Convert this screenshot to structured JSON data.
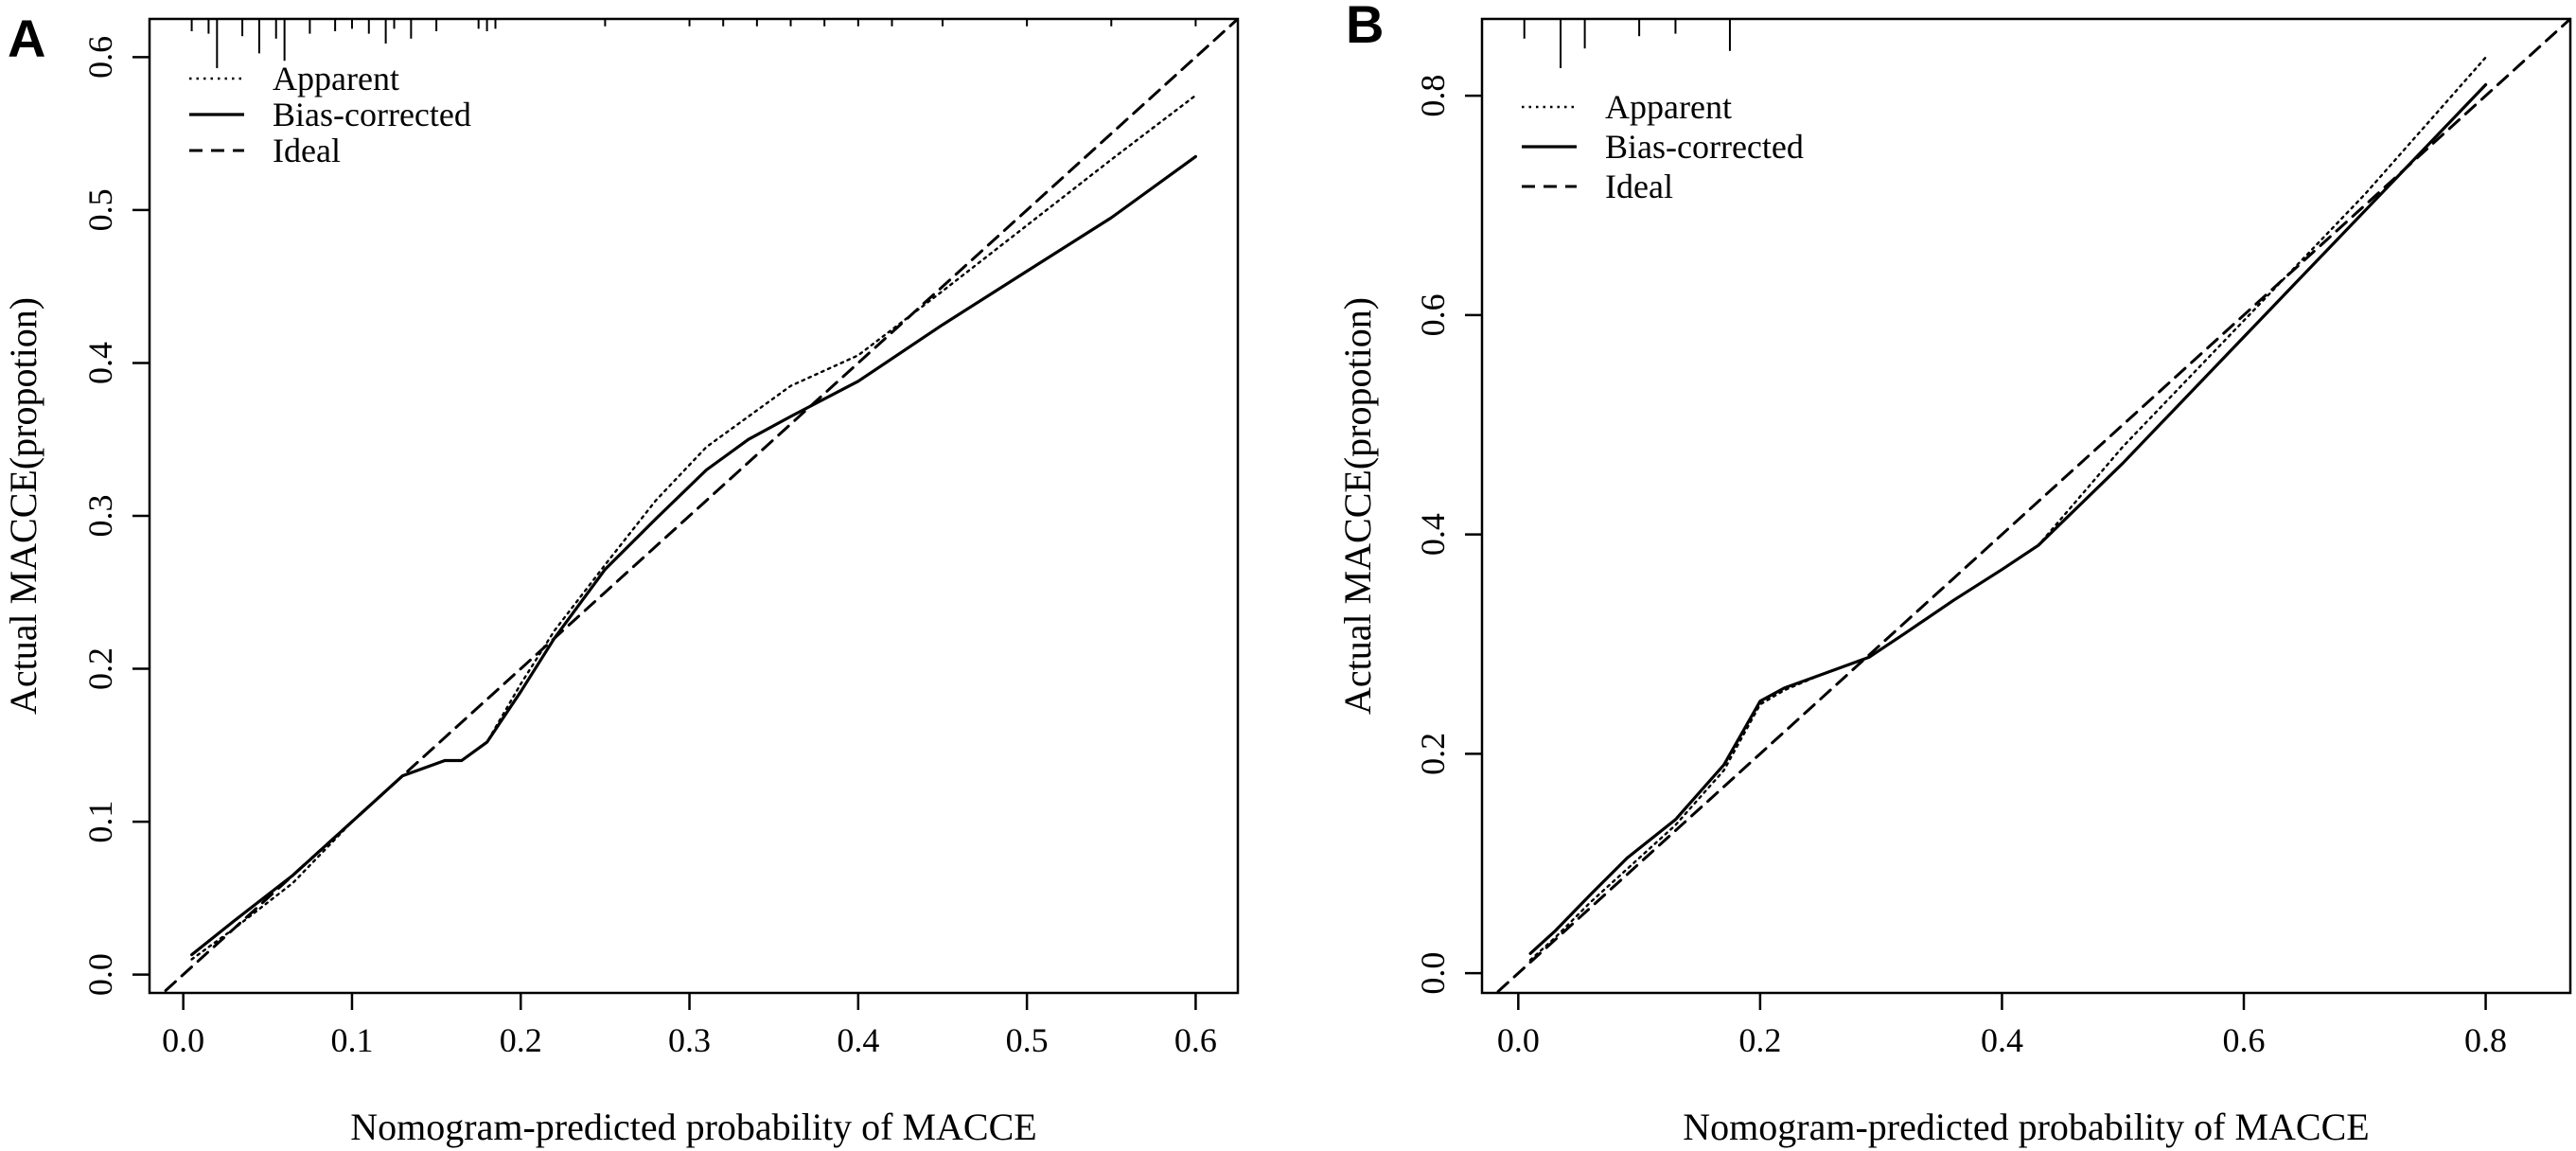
{
  "chart_data": [
    {
      "panel": "A",
      "type": "line",
      "xlabel": "Nomogram-predicted probability of MACCE",
      "ylabel": "Actual MACCE(propotion)",
      "xlim": [
        -0.02,
        0.625
      ],
      "ylim": [
        -0.012,
        0.625
      ],
      "xticks": [
        0.0,
        0.1,
        0.2,
        0.3,
        0.4,
        0.5,
        0.6
      ],
      "yticks": [
        0.0,
        0.1,
        0.2,
        0.3,
        0.4,
        0.5,
        0.6
      ],
      "xtick_labels": [
        "0.0",
        "0.1",
        "0.2",
        "0.3",
        "0.4",
        "0.5",
        "0.6"
      ],
      "ytick_labels": [
        "0.0",
        "0.1",
        "0.2",
        "0.3",
        "0.4",
        "0.5",
        "0.6"
      ],
      "grid": false,
      "legend_position": "top-left",
      "series": [
        {
          "name": "Apparent",
          "style": "dotted",
          "x": [
            0.005,
            0.03,
            0.065,
            0.1,
            0.13,
            0.155,
            0.165,
            0.18,
            0.2,
            0.22,
            0.25,
            0.28,
            0.31,
            0.335,
            0.36,
            0.4,
            0.45,
            0.5,
            0.55,
            0.6
          ],
          "y": [
            0.01,
            0.03,
            0.06,
            0.1,
            0.13,
            0.14,
            0.14,
            0.152,
            0.19,
            0.225,
            0.268,
            0.31,
            0.345,
            0.365,
            0.385,
            0.405,
            0.447,
            0.49,
            0.533,
            0.575
          ]
        },
        {
          "name": "Bias-corrected",
          "style": "solid",
          "x": [
            0.005,
            0.03,
            0.065,
            0.1,
            0.13,
            0.155,
            0.165,
            0.18,
            0.2,
            0.22,
            0.25,
            0.28,
            0.31,
            0.335,
            0.36,
            0.4,
            0.45,
            0.5,
            0.55,
            0.6
          ],
          "y": [
            0.013,
            0.035,
            0.065,
            0.1,
            0.13,
            0.14,
            0.14,
            0.152,
            0.185,
            0.22,
            0.265,
            0.298,
            0.33,
            0.35,
            0.365,
            0.388,
            0.425,
            0.46,
            0.495,
            0.535
          ]
        },
        {
          "name": "Ideal",
          "style": "dashed",
          "x": [
            -0.02,
            0.625
          ],
          "y": [
            -0.02,
            0.625
          ]
        }
      ],
      "rug_x": [
        0.02,
        0.005,
        0.015,
        0.035,
        0.045,
        0.055,
        0.06,
        0.075,
        0.09,
        0.1,
        0.11,
        0.12,
        0.125,
        0.135,
        0.15,
        0.175,
        0.18,
        0.185,
        0.25,
        0.3,
        0.32,
        0.34,
        0.36,
        0.38,
        0.4,
        0.42,
        0.45,
        0.5,
        0.55,
        0.6
      ],
      "rug_len": [
        1.0,
        0.25,
        0.3,
        0.35,
        0.7,
        0.4,
        0.85,
        0.3,
        0.25,
        0.2,
        0.3,
        0.5,
        0.2,
        0.4,
        0.25,
        0.2,
        0.25,
        0.2,
        0.15,
        0.15,
        0.15,
        0.15,
        0.15,
        0.15,
        0.15,
        0.15,
        0.15,
        0.15,
        0.15,
        0.15
      ]
    },
    {
      "panel": "B",
      "type": "line",
      "xlabel": "Nomogram-predicted probability of MACCE",
      "ylabel": "Actual MACCE(propotion)",
      "xlim": [
        -0.03,
        0.87
      ],
      "ylim": [
        -0.018,
        0.87
      ],
      "xticks": [
        0.0,
        0.2,
        0.4,
        0.6,
        0.8
      ],
      "yticks": [
        0.0,
        0.2,
        0.4,
        0.6,
        0.8
      ],
      "xtick_labels": [
        "0.0",
        "0.2",
        "0.4",
        "0.6",
        "0.8"
      ],
      "ytick_labels": [
        "0.0",
        "0.2",
        "0.4",
        "0.6",
        "0.8"
      ],
      "grid": false,
      "legend_position": "top-left",
      "series": [
        {
          "name": "Apparent",
          "style": "dotted",
          "x": [
            0.01,
            0.03,
            0.06,
            0.09,
            0.13,
            0.17,
            0.2,
            0.22,
            0.25,
            0.29,
            0.32,
            0.36,
            0.4,
            0.43,
            0.5,
            0.6,
            0.7,
            0.8
          ],
          "y": [
            0.012,
            0.032,
            0.065,
            0.095,
            0.135,
            0.185,
            0.245,
            0.258,
            0.272,
            0.288,
            0.31,
            0.34,
            0.368,
            0.39,
            0.48,
            0.595,
            0.71,
            0.835
          ]
        },
        {
          "name": "Bias-corrected",
          "style": "solid",
          "x": [
            0.01,
            0.03,
            0.06,
            0.09,
            0.13,
            0.17,
            0.2,
            0.22,
            0.25,
            0.29,
            0.32,
            0.36,
            0.4,
            0.43,
            0.5,
            0.6,
            0.7,
            0.8
          ],
          "y": [
            0.018,
            0.038,
            0.072,
            0.105,
            0.14,
            0.19,
            0.248,
            0.26,
            0.272,
            0.288,
            0.31,
            0.34,
            0.368,
            0.39,
            0.465,
            0.58,
            0.695,
            0.81
          ]
        },
        {
          "name": "Ideal",
          "style": "dashed",
          "x": [
            -0.03,
            0.87
          ],
          "y": [
            -0.03,
            0.87
          ]
        }
      ],
      "rug_x": [
        0.005,
        0.035,
        0.055,
        0.1,
        0.13,
        0.175
      ],
      "rug_len": [
        0.4,
        1.0,
        0.6,
        0.35,
        0.3,
        0.65
      ]
    }
  ]
}
